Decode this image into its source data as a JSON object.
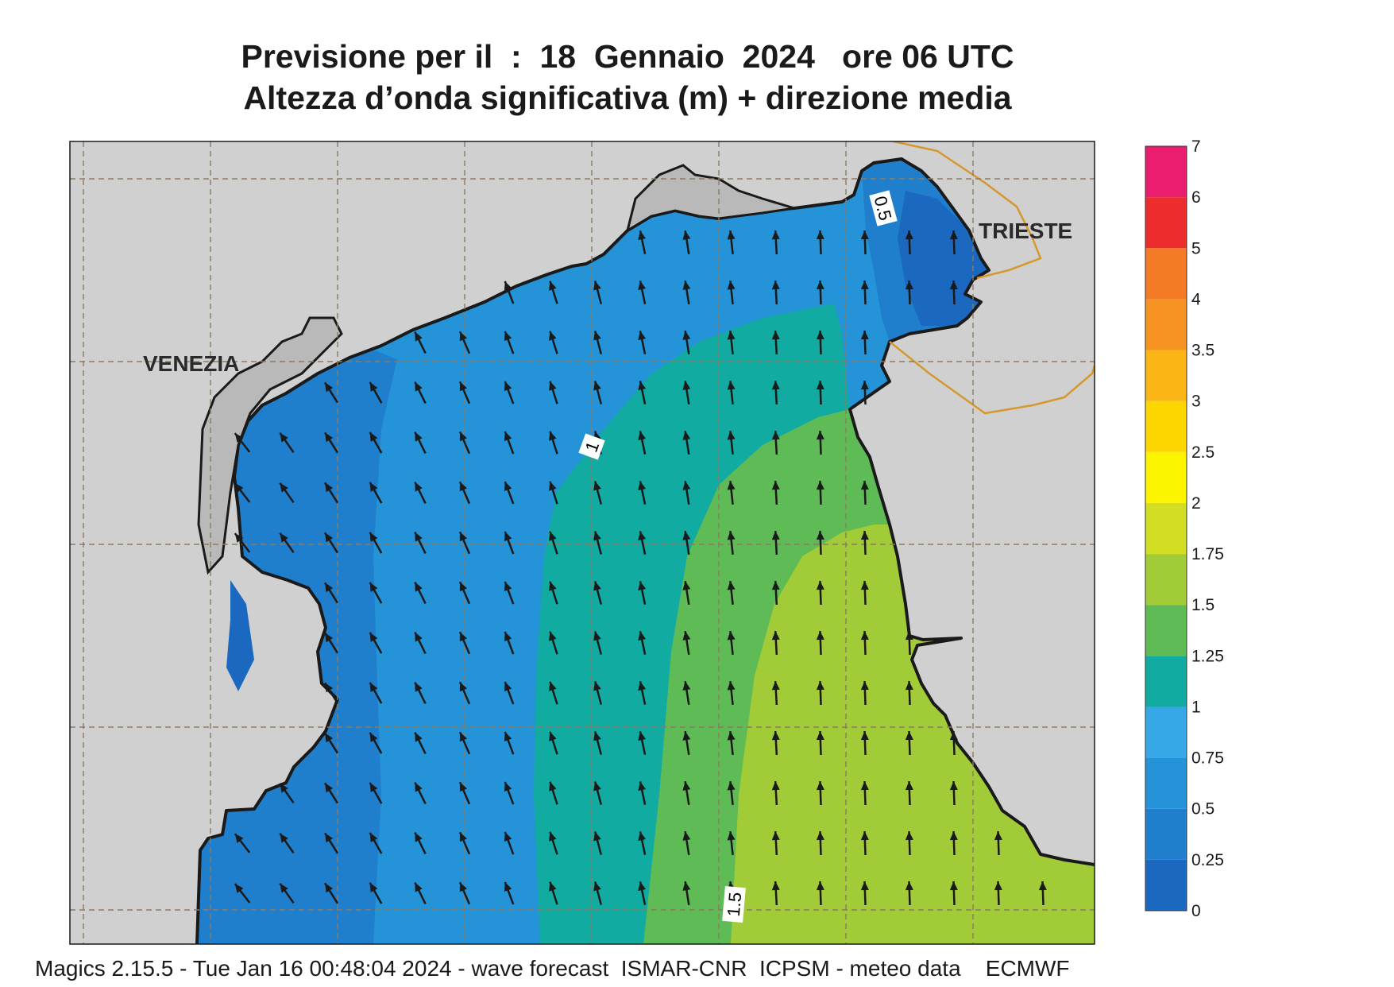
{
  "title_line1": "Previsione per il  :  18  Gennaio  2024   ore 06 UTC",
  "title_line2": "Altezza d’onda significativa (m) + direzione media",
  "footer": "Magics 2.15.5 - Tue Jan 16 00:48:04 2024 - wave forecast  ISMAR-CNR  ICPSM - meteo data    ECMWF",
  "cities": {
    "venezia": "VENEZIA",
    "trieste": "TRIESTE"
  },
  "contour_labels": {
    "c05": "0.5",
    "c1": "1",
    "c15": "1.5"
  },
  "colorbar": {
    "levels": [
      "0",
      "0.25",
      "0.5",
      "0.75",
      "1",
      "1.25",
      "1.5",
      "1.75",
      "2",
      "2.5",
      "3",
      "3.5",
      "4",
      "5",
      "6",
      "7"
    ],
    "colors": [
      "#1a68bf",
      "#1f7fcc",
      "#2593d8",
      "#36a8e8",
      "#12aba2",
      "#5ebb55",
      "#a2cb38",
      "#d2de24",
      "#fdf500",
      "#fdd600",
      "#fbb616",
      "#f79322",
      "#f47a25",
      "#ec2c2d",
      "#ea1d6e"
    ]
  },
  "colors": {
    "land": "#d0d0d0",
    "coastline": "#1a1a1a",
    "border": "#d4982e",
    "grid": "#8c7b63",
    "arrow": "#1a1a1a"
  }
}
